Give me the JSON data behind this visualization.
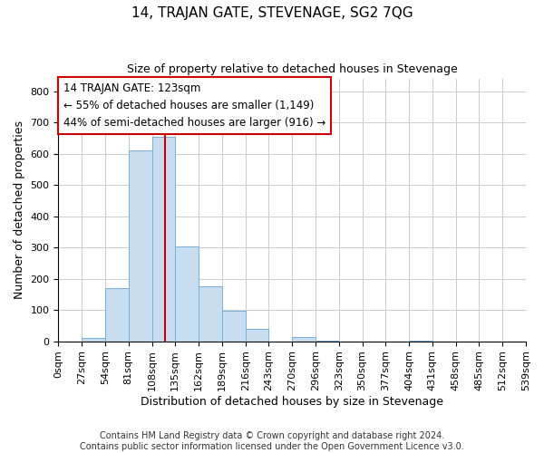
{
  "title": "14, TRAJAN GATE, STEVENAGE, SG2 7QG",
  "subtitle": "Size of property relative to detached houses in Stevenage",
  "xlabel": "Distribution of detached houses by size in Stevenage",
  "ylabel": "Number of detached properties",
  "bar_edges": [
    0,
    27,
    54,
    81,
    108,
    135,
    162,
    189,
    216,
    243,
    270,
    297,
    324,
    351,
    378,
    405,
    432,
    459,
    486,
    513,
    540
  ],
  "bar_heights": [
    0,
    12,
    170,
    612,
    655,
    305,
    175,
    98,
    40,
    0,
    13,
    3,
    0,
    0,
    0,
    3,
    0,
    0,
    0,
    0
  ],
  "bar_color": "#c9ddf0",
  "bar_edgecolor": "#7bafd4",
  "vline_x": 123,
  "vline_color": "#cc0000",
  "ylim": [
    0,
    840
  ],
  "yticks": [
    0,
    100,
    200,
    300,
    400,
    500,
    600,
    700,
    800
  ],
  "xtick_labels": [
    "0sqm",
    "27sqm",
    "54sqm",
    "81sqm",
    "108sqm",
    "135sqm",
    "162sqm",
    "189sqm",
    "216sqm",
    "243sqm",
    "270sqm",
    "296sqm",
    "323sqm",
    "350sqm",
    "377sqm",
    "404sqm",
    "431sqm",
    "458sqm",
    "485sqm",
    "512sqm",
    "539sqm"
  ],
  "annotation_line1": "14 TRAJAN GATE: 123sqm",
  "annotation_line2": "← 55% of detached houses are smaller (1,149)",
  "annotation_line3": "44% of semi-detached houses are larger (916) →",
  "footer_text": "Contains HM Land Registry data © Crown copyright and database right 2024.\nContains public sector information licensed under the Open Government Licence v3.0.",
  "background_color": "#ffffff",
  "grid_color": "#cccccc",
  "title_fontsize": 11,
  "subtitle_fontsize": 9,
  "axis_label_fontsize": 9,
  "tick_fontsize": 8,
  "annotation_fontsize": 8.5,
  "footer_fontsize": 7
}
